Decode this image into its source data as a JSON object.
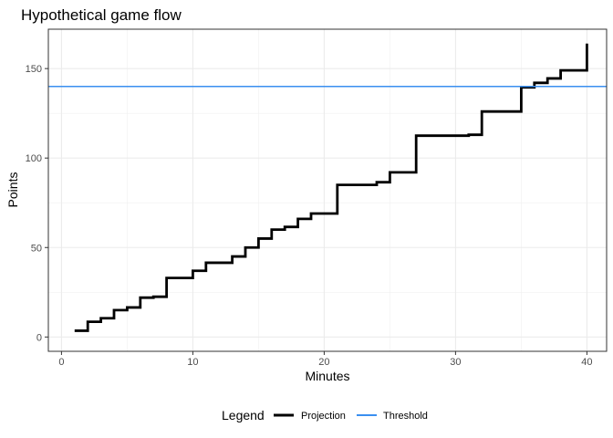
{
  "chart_data": {
    "type": "line",
    "title": "Hypothetical game flow",
    "xlabel": "Minutes",
    "ylabel": "Points",
    "xlim": [
      -1,
      41.5
    ],
    "ylim": [
      -8,
      172
    ],
    "x_ticks": [
      0,
      10,
      20,
      30,
      40
    ],
    "y_ticks": [
      0,
      50,
      100,
      150
    ],
    "x_minor_ticks": [
      5,
      15,
      25,
      35
    ],
    "y_minor_ticks": [
      25,
      75,
      125
    ],
    "grid": true,
    "legend": {
      "title": "Legend",
      "position": "bottom"
    },
    "series": [
      {
        "name": "Projection",
        "color": "#000000",
        "style": "step",
        "points": [
          [
            1,
            3.5
          ],
          [
            2,
            8.5
          ],
          [
            3,
            10.5
          ],
          [
            4,
            15
          ],
          [
            5,
            16.5
          ],
          [
            6,
            22
          ],
          [
            7,
            22.5
          ],
          [
            8,
            33
          ],
          [
            10,
            37
          ],
          [
            11,
            41.5
          ],
          [
            13,
            45
          ],
          [
            14,
            50
          ],
          [
            15,
            55
          ],
          [
            16,
            60
          ],
          [
            17,
            61.5
          ],
          [
            18,
            66
          ],
          [
            19,
            69
          ],
          [
            21,
            85
          ],
          [
            24,
            86.5
          ],
          [
            25,
            92
          ],
          [
            27,
            112.5
          ],
          [
            31,
            113
          ],
          [
            32,
            126
          ],
          [
            35,
            139.5
          ],
          [
            36,
            142
          ],
          [
            37,
            144.5
          ],
          [
            38,
            149
          ],
          [
            40,
            164
          ]
        ]
      },
      {
        "name": "Threshold",
        "color": "#3a8ff0",
        "style": "hline",
        "y": 140
      }
    ]
  }
}
